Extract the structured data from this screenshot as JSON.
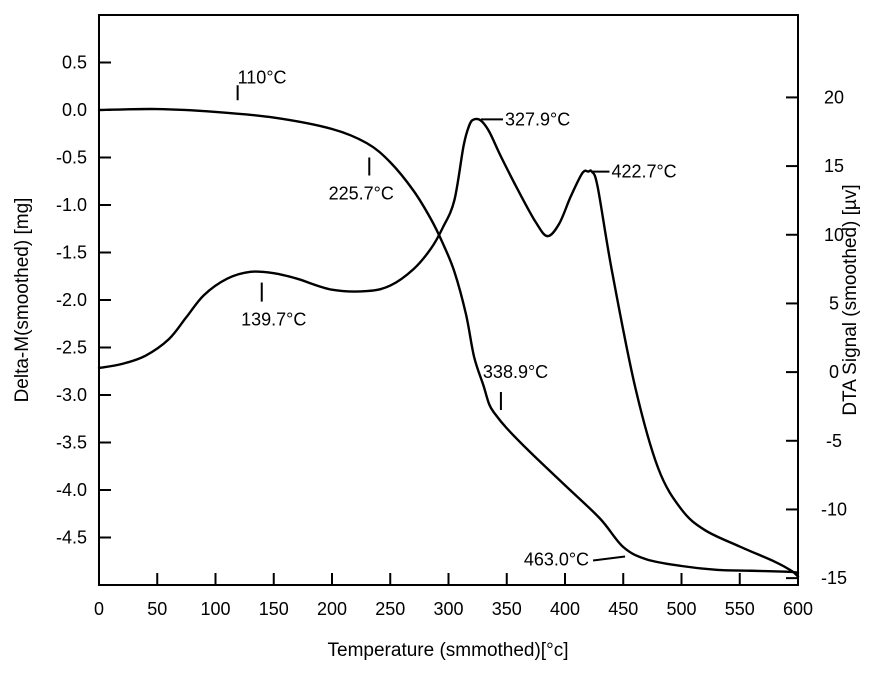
{
  "chart_data": {
    "type": "line",
    "title": "",
    "xlabel": "Temperature (smmothed)[°c]",
    "ylabel_left": "Delta-M(smoothed) [mg]",
    "ylabel_right": "DTA Signal (smoothed) [µv]",
    "xlim": [
      0,
      600
    ],
    "x_ticks": [
      "0",
      "50",
      "100",
      "150",
      "200",
      "250",
      "300",
      "350",
      "400",
      "450",
      "500",
      "550",
      "600"
    ],
    "ylim_left": [
      -5.0,
      1.0
    ],
    "y_ticks_left": [
      "0.5",
      "0.0",
      "-0.5",
      "-1.0",
      "-1.5",
      "-2.0",
      "-2.5",
      "-3.0",
      "-3.5",
      "-4.0",
      "-4.5"
    ],
    "ylim_right": [
      -15.5,
      26
    ],
    "y_ticks_right": [
      "20",
      "15",
      "10",
      "5",
      "0",
      "-5",
      "-10",
      "-15"
    ],
    "grid": false,
    "legend": "none",
    "series": [
      {
        "axis": "left",
        "x": [
          0,
          50,
          100,
          150,
          200,
          230,
          250,
          270,
          285,
          295,
          305,
          315,
          322,
          330,
          335,
          340,
          350,
          370,
          400,
          430,
          450,
          470,
          500,
          530,
          560,
          590,
          600
        ],
        "y": [
          0.0,
          0.01,
          -0.02,
          -0.08,
          -0.2,
          -0.35,
          -0.55,
          -0.85,
          -1.15,
          -1.4,
          -1.7,
          -2.15,
          -2.6,
          -2.9,
          -3.1,
          -3.2,
          -3.35,
          -3.6,
          -3.95,
          -4.3,
          -4.6,
          -4.73,
          -4.8,
          -4.84,
          -4.85,
          -4.86,
          -4.87
        ]
      },
      {
        "axis": "right",
        "x": [
          0,
          20,
          40,
          60,
          75,
          90,
          110,
          130,
          150,
          170,
          200,
          230,
          250,
          270,
          285,
          295,
          305,
          313,
          318,
          322,
          328,
          335,
          345,
          360,
          375,
          385,
          395,
          405,
          415,
          420,
          423,
          428,
          440,
          460,
          480,
          500,
          520,
          550,
          580,
          595,
          600
        ],
        "y": [
          0.3,
          0.6,
          1.2,
          2.4,
          4.0,
          5.6,
          6.8,
          7.3,
          7.2,
          6.8,
          6.0,
          5.9,
          6.3,
          7.5,
          9.0,
          10.5,
          12.5,
          16.5,
          18.0,
          18.4,
          18.3,
          17.5,
          15.7,
          13.2,
          10.9,
          9.9,
          10.8,
          12.8,
          14.5,
          14.6,
          14.6,
          13.5,
          7.5,
          -1.0,
          -7.0,
          -10.0,
          -11.5,
          -12.7,
          -13.8,
          -14.5,
          -14.9
        ]
      }
    ],
    "annotations": [
      {
        "label": "110°C",
        "x": 119,
        "axis": "left",
        "y": 0.05
      },
      {
        "label": "225.7°C",
        "x": 232,
        "axis": "left",
        "y": -0.5
      },
      {
        "label": "139.7°C",
        "x": 139.7,
        "axis": "right",
        "y": 6.3
      },
      {
        "label": "327.9°C",
        "x": 327.9,
        "axis": "right",
        "y": 18.4
      },
      {
        "label": "422.7°C",
        "x": 422.7,
        "axis": "right",
        "y": 14.6
      },
      {
        "label": "338.9°C",
        "x": 345,
        "axis": "left",
        "y": -3.2
      },
      {
        "label": "463.0°C",
        "x": 455,
        "axis": "left",
        "y": -4.7
      }
    ]
  }
}
